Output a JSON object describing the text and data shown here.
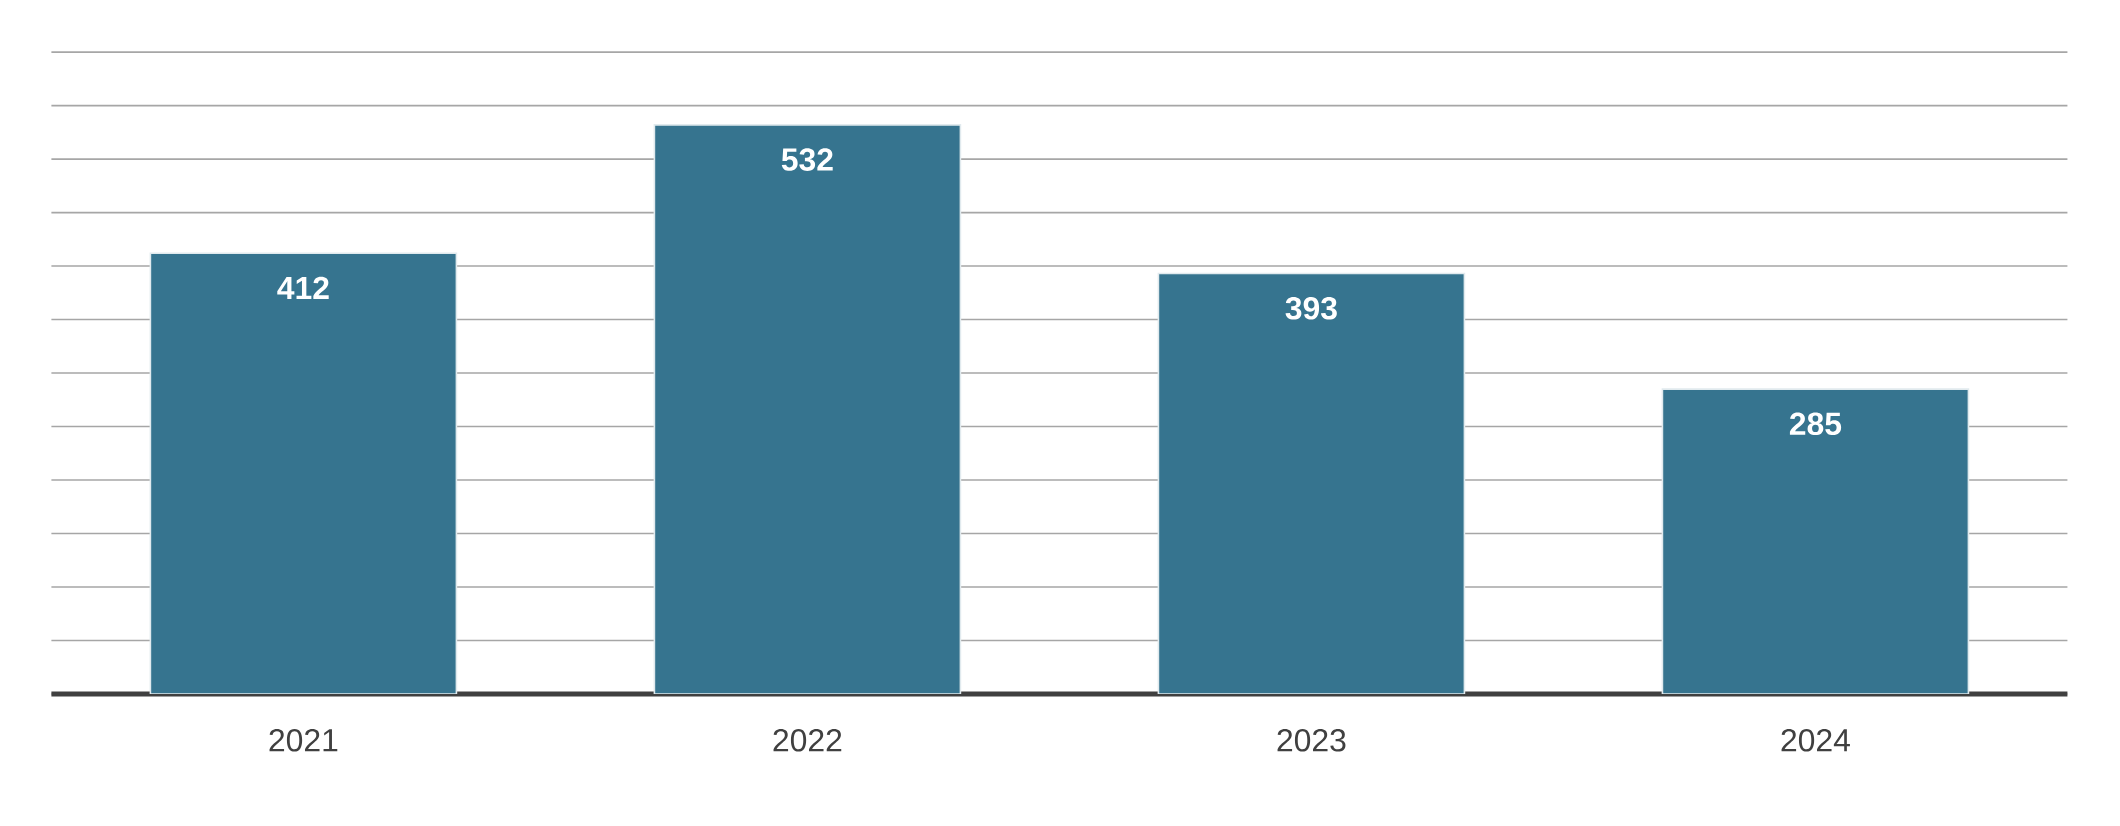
{
  "chart_data": {
    "type": "bar",
    "categories": [
      "2021",
      "2022",
      "2023",
      "2024"
    ],
    "values": [
      412,
      532,
      393,
      285
    ],
    "color": "#36748f",
    "grid": "y",
    "tick_labels": "x",
    "data_labels": true
  }
}
